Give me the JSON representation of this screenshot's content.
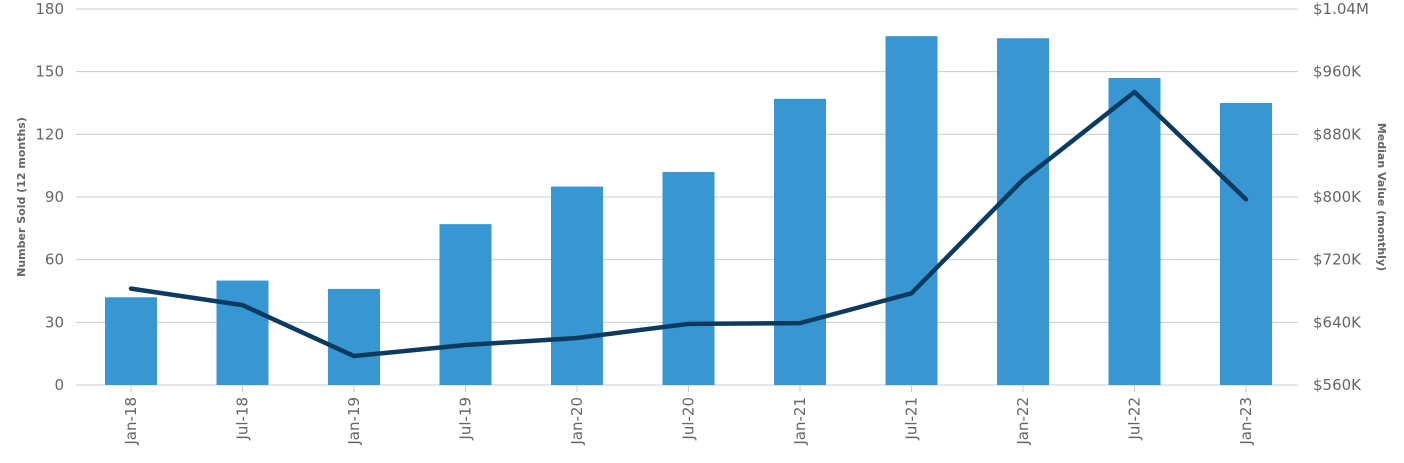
{
  "chart_data": {
    "type": "bar",
    "categories": [
      "Jan-18",
      "Jul-18",
      "Jan-19",
      "Jul-19",
      "Jan-20",
      "Jul-20",
      "Jan-21",
      "Jul-21",
      "Jan-22",
      "Jul-22",
      "Jan-23"
    ],
    "series": [
      {
        "name": "",
        "type": "bar",
        "axis": "left",
        "values": [
          42,
          50,
          46,
          77,
          95,
          102,
          137,
          167,
          166,
          147,
          135
        ]
      },
      {
        "name": "",
        "type": "line",
        "axis": "right",
        "values": [
          683000,
          662000,
          597000,
          611000,
          620000,
          638000,
          639000,
          677000,
          822000,
          934000,
          797000
        ]
      }
    ],
    "ylabel": "Number Sold (12 months)",
    "y2label": "Median Value (monthly)",
    "ylim": [
      0,
      180
    ],
    "yticks": [
      "0",
      "30",
      "60",
      "90",
      "120",
      "150",
      "180"
    ],
    "y2lim": [
      560000,
      1040000
    ],
    "y2ticks": [
      "$560K",
      "$640K",
      "$720K",
      "$800K",
      "$880K",
      "$960K",
      "$1.04M"
    ],
    "grid": true,
    "colors": {
      "bar": "#3896d3",
      "line": "#0d3a5f"
    }
  }
}
